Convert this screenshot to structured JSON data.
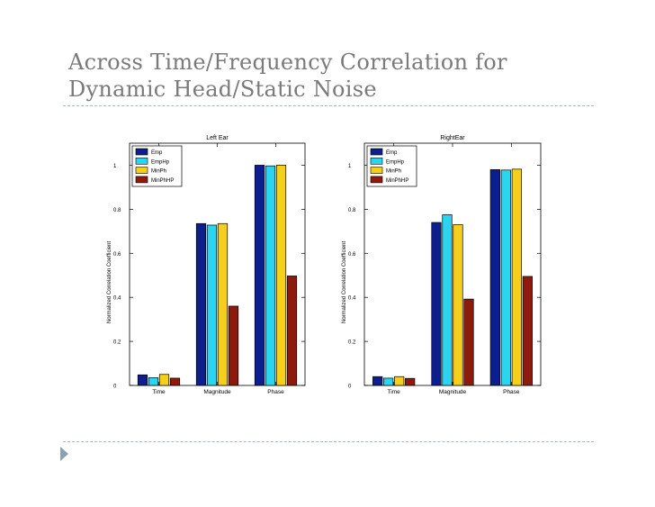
{
  "slide": {
    "title_line1": "Across Time/Frequency Correlation for",
    "title_line2": "Dynamic Head/Static Noise"
  },
  "colors": {
    "series": [
      "#0d1f8c",
      "#2bd5f0",
      "#f5cf1c",
      "#8c1a0d"
    ],
    "text": "#7a7a7a",
    "divider": "#a8b8c8"
  },
  "chart_data": [
    {
      "type": "bar",
      "title": "Left Ear",
      "xlabel": "",
      "ylabel": "Normalized Correlation Coefficient",
      "ylim": [
        0,
        1.1
      ],
      "yticks": [
        0,
        0.2,
        0.4,
        0.6,
        0.8,
        1
      ],
      "ytick_labels": [
        "0",
        "0.2",
        "0.4",
        "0.6",
        "0.8",
        "1"
      ],
      "categories": [
        "Time",
        "Magnitude",
        "Phase"
      ],
      "legend_position": "top-left",
      "series": [
        {
          "name": "Emp",
          "values": [
            0.048,
            0.735,
            1.0
          ]
        },
        {
          "name": "EmpHp",
          "values": [
            0.035,
            0.728,
            0.997
          ]
        },
        {
          "name": "MinPh",
          "values": [
            0.05,
            0.735,
            1.0
          ]
        },
        {
          "name": "MinPhHP",
          "values": [
            0.033,
            0.36,
            0.497
          ]
        }
      ]
    },
    {
      "type": "bar",
      "title": "RightEar",
      "xlabel": "",
      "ylabel": "Normalized Correlation Coefficient",
      "ylim": [
        0,
        1.1
      ],
      "yticks": [
        0,
        0.2,
        0.4,
        0.6,
        0.8,
        1
      ],
      "ytick_labels": [
        "0",
        "0.2",
        "0.4",
        "0.6",
        "0.8",
        "1"
      ],
      "categories": [
        "Time",
        "Magnitude",
        "Phase"
      ],
      "legend_position": "top-left",
      "series": [
        {
          "name": "Emp",
          "values": [
            0.04,
            0.74,
            0.98
          ]
        },
        {
          "name": "EmpHp",
          "values": [
            0.033,
            0.775,
            0.978
          ]
        },
        {
          "name": "MinPh",
          "values": [
            0.04,
            0.73,
            0.982
          ]
        },
        {
          "name": "MinPhHP",
          "values": [
            0.032,
            0.392,
            0.495
          ]
        }
      ]
    }
  ]
}
